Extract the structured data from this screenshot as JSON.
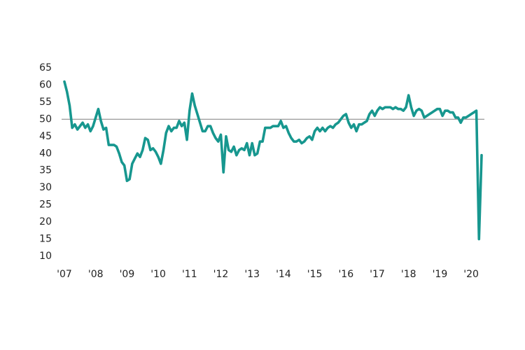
{
  "chart_data": {
    "type": "line",
    "categories": [
      "'07",
      null,
      null,
      null,
      null,
      null,
      null,
      null,
      null,
      null,
      null,
      null,
      "'08",
      null,
      null,
      null,
      null,
      null,
      null,
      null,
      null,
      null,
      null,
      null,
      "'09",
      null,
      null,
      null,
      null,
      null,
      null,
      null,
      null,
      null,
      null,
      null,
      "'10",
      null,
      null,
      null,
      null,
      null,
      null,
      null,
      null,
      null,
      null,
      null,
      "'11",
      null,
      null,
      null,
      null,
      null,
      null,
      null,
      null,
      null,
      null,
      null,
      "'12",
      null,
      null,
      null,
      null,
      null,
      null,
      null,
      null,
      null,
      null,
      null,
      "'13",
      null,
      null,
      null,
      null,
      null,
      null,
      null,
      null,
      null,
      null,
      null,
      "'14",
      null,
      null,
      null,
      null,
      null,
      null,
      null,
      null,
      null,
      null,
      null,
      "'15",
      null,
      null,
      null,
      null,
      null,
      null,
      null,
      null,
      null,
      null,
      null,
      "'16",
      null,
      null,
      null,
      null,
      null,
      null,
      null,
      null,
      null,
      null,
      null,
      "'17",
      null,
      null,
      null,
      null,
      null,
      null,
      null,
      null,
      null,
      null,
      null,
      "'18",
      null,
      null,
      null,
      null,
      null,
      null,
      null,
      null,
      null,
      null,
      null,
      "'19",
      null,
      null,
      null,
      null,
      null,
      null,
      null,
      null,
      null,
      null,
      null,
      "'20",
      null,
      null,
      null,
      null
    ],
    "series": [
      {
        "color": "#17978f",
        "values": [
          61,
          58,
          54,
          47.5,
          48.5,
          47,
          48,
          49,
          47.5,
          48.5,
          46.5,
          48,
          50.5,
          53,
          49.5,
          47,
          47.5,
          42.5,
          42.5,
          42.5,
          42,
          40,
          37.5,
          36.5,
          32,
          32.5,
          37,
          38.5,
          40,
          39,
          41,
          44.5,
          44,
          41,
          41.5,
          40.5,
          39,
          37,
          41,
          46,
          48,
          46.5,
          47.5,
          47.5,
          49.5,
          48,
          49,
          44,
          52.5,
          57.5,
          54,
          51.5,
          49,
          46.5,
          46.5,
          48,
          48,
          46,
          44.5,
          43.5,
          45.5,
          34.5,
          45,
          41,
          40.5,
          42,
          39.5,
          41,
          41.5,
          41,
          43,
          39.5,
          43,
          39.5,
          40,
          43.5,
          43.5,
          47.5,
          47.5,
          47.5,
          48,
          48,
          48,
          49.5,
          47.5,
          48,
          46,
          44.5,
          43.5,
          43.5,
          44,
          43,
          43.5,
          44.5,
          45,
          44,
          46.5,
          47.5,
          46.5,
          47.5,
          46.5,
          47.5,
          48,
          47.5,
          48.5,
          49,
          50,
          51,
          51.5,
          49,
          47.5,
          48.5,
          46.5,
          48.5,
          48.5,
          49,
          49.5,
          51.5,
          52.5,
          51,
          52.5,
          53.5,
          53,
          53.5,
          53.5,
          53.5,
          53,
          53.5,
          53,
          53,
          52.5,
          53.5,
          57,
          53.5,
          51,
          52.5,
          53,
          52.5,
          50.5,
          51,
          51.5,
          52,
          52.5,
          53,
          53,
          51,
          52.5,
          52.5,
          52,
          52,
          50.5,
          50.5,
          49,
          50.5,
          50.5,
          51,
          51.5,
          52,
          52.5,
          15,
          39.5
        ]
      }
    ],
    "ylim": [
      10,
      65
    ],
    "yticks": [
      10,
      15,
      20,
      25,
      30,
      35,
      40,
      45,
      50,
      55,
      60,
      65
    ],
    "hline": 50,
    "grid": false
  }
}
